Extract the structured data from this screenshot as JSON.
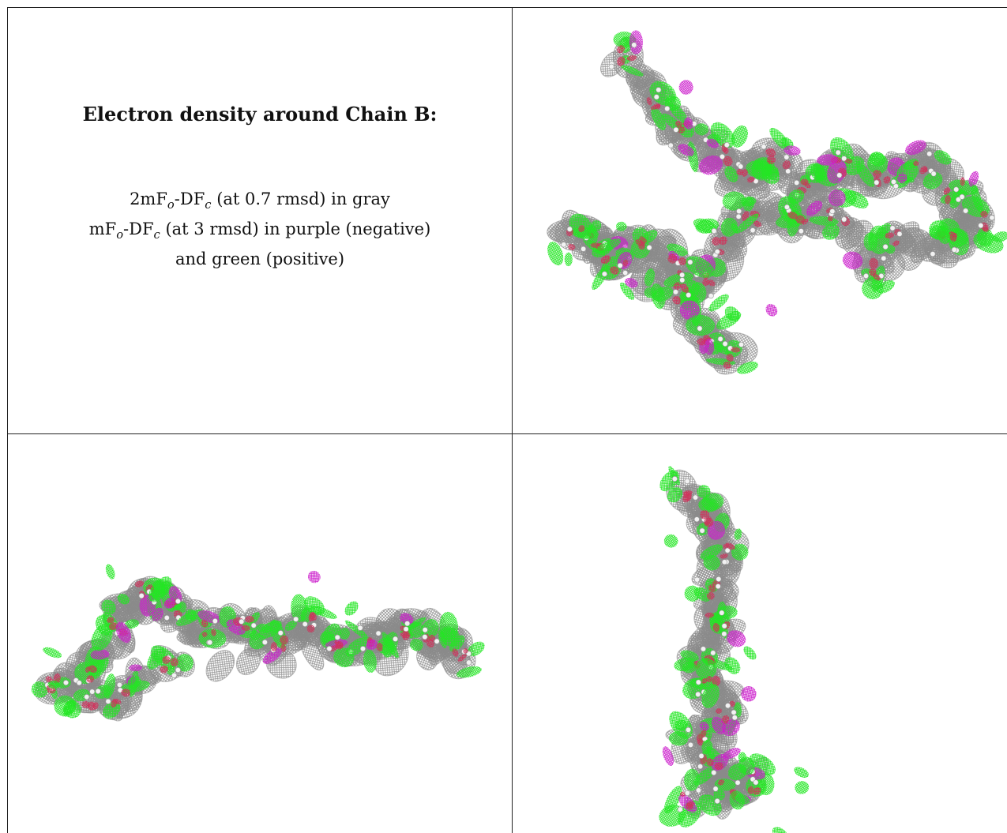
{
  "panel_text": {
    "title": "Electron density around Chain B:",
    "line1": {
      "pre": "2mF",
      "sub1": "o",
      "mid": "-DF",
      "sub2": "c",
      "post": " (at 0.7 rmsd) in gray"
    },
    "line2": {
      "pre": "mF",
      "sub1": "o",
      "mid": "-DF",
      "sub2": "c",
      "post": " (at 3 rmsd) in purple (negative)"
    },
    "line3": "and green (positive)"
  },
  "colors": {
    "gray_mesh": "#8a8a8a",
    "negative": "#cc1fcc",
    "positive": "#22e622",
    "atom_red": "#d0305a",
    "atom_blue": "#3a3aa8",
    "atom_white": "#f2f2f2",
    "grid_line": "#222222"
  },
  "views": [
    {
      "name": "view-top"
    },
    {
      "name": "view-side"
    },
    {
      "name": "view-front"
    }
  ]
}
